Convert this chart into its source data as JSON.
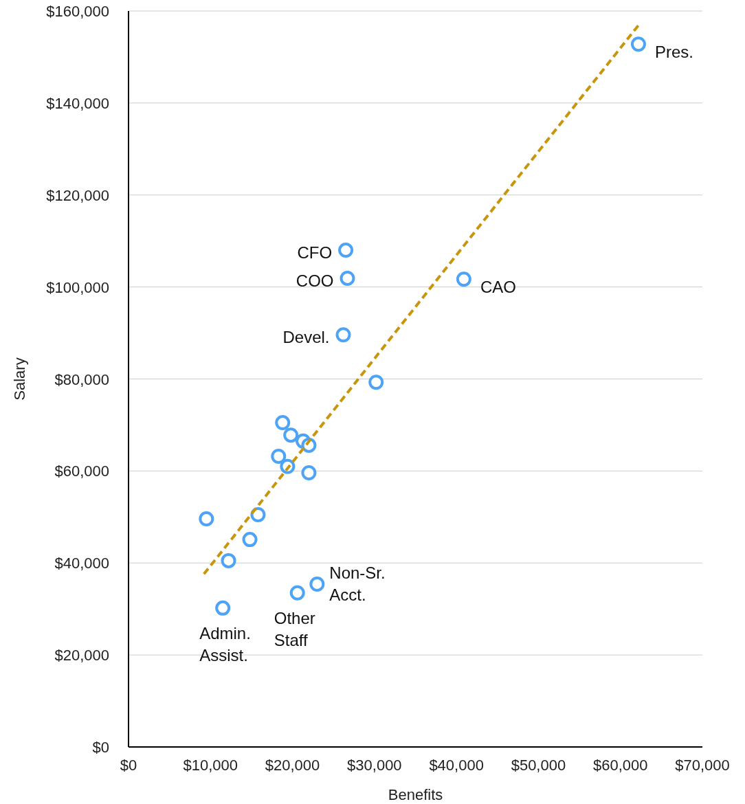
{
  "chart_data": {
    "type": "scatter",
    "xlabel": "Benefits",
    "ylabel": "Salary",
    "xlim": [
      0,
      70000
    ],
    "ylim": [
      0,
      160000
    ],
    "xticks": [
      {
        "value": 0,
        "label": "$0"
      },
      {
        "value": 10000,
        "label": "$10,000"
      },
      {
        "value": 20000,
        "label": "$20,000"
      },
      {
        "value": 30000,
        "label": "$30,000"
      },
      {
        "value": 40000,
        "label": "$40,000"
      },
      {
        "value": 50000,
        "label": "$50,000"
      },
      {
        "value": 60000,
        "label": "$60,000"
      },
      {
        "value": 70000,
        "label": "$70,000"
      }
    ],
    "yticks": [
      {
        "value": 0,
        "label": "$0"
      },
      {
        "value": 20000,
        "label": "$20,000"
      },
      {
        "value": 40000,
        "label": "$40,000"
      },
      {
        "value": 60000,
        "label": "$60,000"
      },
      {
        "value": 80000,
        "label": "$80,000"
      },
      {
        "value": 100000,
        "label": "$100,000"
      },
      {
        "value": 120000,
        "label": "$120,000"
      },
      {
        "value": 140000,
        "label": "$140,000"
      },
      {
        "value": 160000,
        "label": "$160,000"
      }
    ],
    "grid": "y",
    "series": [
      {
        "color": "#4da3f5",
        "marker": "circle",
        "x": [
          62200,
          26500,
          26700,
          40900,
          26200,
          30200,
          18800,
          19800,
          21300,
          22000,
          18300,
          19400,
          22000,
          9500,
          15800,
          14800,
          12200,
          11500,
          20600,
          23000
        ],
        "values": [
          152800,
          108000,
          101900,
          101700,
          89600,
          79300,
          70500,
          67800,
          66500,
          65600,
          63200,
          61000,
          59600,
          49600,
          50500,
          45100,
          40500,
          30200,
          33500,
          35400
        ]
      },
      {
        "type": "line",
        "color": "#c8960c",
        "line_style": "dashed",
        "x": [
          9200,
          62200
        ],
        "values": [
          37600,
          156900
        ]
      }
    ],
    "annotations": [
      {
        "text": "Pres.",
        "x": 62200,
        "y": 152800
      },
      {
        "text": "CFO",
        "x": 26500,
        "y": 108000
      },
      {
        "text": "COO",
        "x": 26700,
        "y": 101900
      },
      {
        "text": "CAO",
        "x": 40900,
        "y": 101700
      },
      {
        "text": "Devel.",
        "x": 26200,
        "y": 89600
      },
      {
        "text": "Admin.\nAssist.",
        "x": 11500,
        "y": 30200
      },
      {
        "text": "Other\nStaff",
        "x": 20600,
        "y": 33500
      },
      {
        "text": "Non-Sr.\nAcct.",
        "x": 23000,
        "y": 35400
      }
    ]
  }
}
